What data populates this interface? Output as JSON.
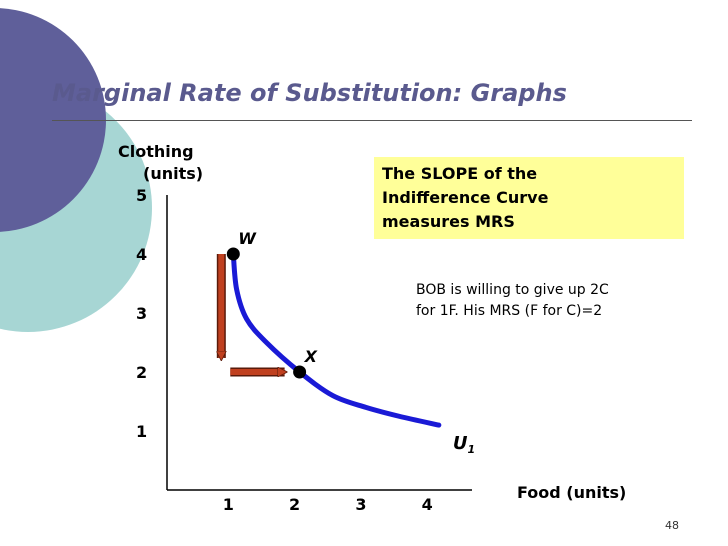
{
  "slide": {
    "title": "Marginal Rate of Substitution: Graphs",
    "page_number": "48",
    "theme_colors": {
      "title": "#5a5a8e",
      "deco_dark": "#5f5f9a",
      "deco_light": "#a7d6d4",
      "curve": "#1a1ad6",
      "arrow": "#c0401f",
      "box": "#ffff99"
    }
  },
  "callout": {
    "lines": [
      "The SLOPE of the",
      "Indifference Curve",
      "measures MRS"
    ]
  },
  "note": {
    "lines": [
      "BOB is willing to give up 2C",
      "for 1F. His MRS (F for C)=2"
    ]
  },
  "chart_data": {
    "type": "line",
    "title": "",
    "ylabel": [
      "Clothing",
      "(units)"
    ],
    "xlabel": "Food (units)",
    "x_ticks": [
      "1",
      "2",
      "3",
      "4"
    ],
    "y_ticks": [
      "1",
      "2",
      "3",
      "4",
      "5"
    ],
    "xlim": [
      0,
      4.6
    ],
    "ylim": [
      0,
      5
    ],
    "series": [
      {
        "name": "U1",
        "label_main": "U",
        "label_sub": "1",
        "points": [
          [
            1,
            4.0
          ],
          [
            1.05,
            3.4
          ],
          [
            1.2,
            2.9
          ],
          [
            1.5,
            2.5
          ],
          [
            2,
            2.0
          ],
          [
            2.5,
            1.6
          ],
          [
            3,
            1.4
          ],
          [
            3.5,
            1.25
          ],
          [
            4.1,
            1.1
          ]
        ]
      }
    ],
    "marked_points": [
      {
        "name": "W",
        "x": 1,
        "y": 4
      },
      {
        "name": "X",
        "x": 2,
        "y": 2
      }
    ],
    "arrows": [
      {
        "from": [
          1,
          4
        ],
        "to": [
          1,
          2
        ],
        "meaning": "give up 2C"
      },
      {
        "from": [
          1,
          2
        ],
        "to": [
          2,
          2
        ],
        "meaning": "gain 1F"
      }
    ]
  }
}
